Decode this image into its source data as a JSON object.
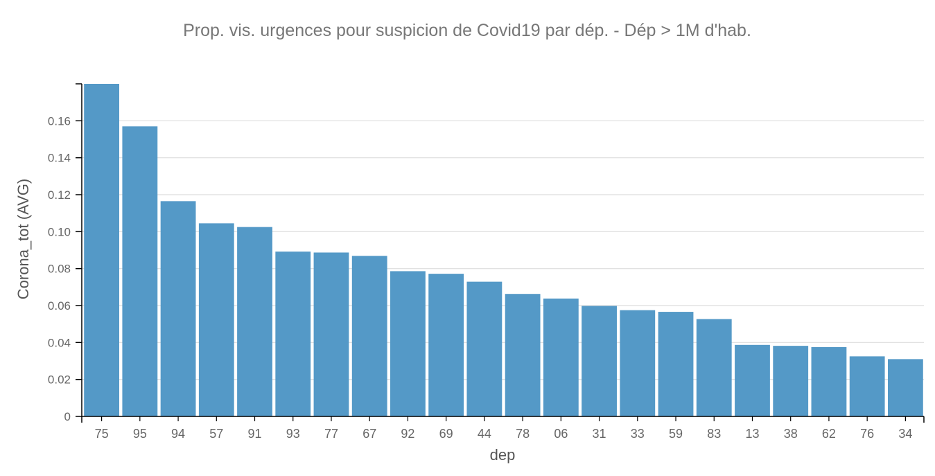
{
  "chart_data": {
    "type": "bar",
    "title": "Prop. vis. urgences pour suspicion de Covid19 par dép. - Dép > 1M d'hab.",
    "xlabel": "dep",
    "ylabel": "Corona_tot (AVG)",
    "categories": [
      "75",
      "95",
      "94",
      "57",
      "91",
      "93",
      "77",
      "67",
      "92",
      "69",
      "44",
      "78",
      "06",
      "31",
      "33",
      "59",
      "83",
      "13",
      "38",
      "62",
      "76",
      "34"
    ],
    "values": [
      0.18,
      0.157,
      0.1165,
      0.1045,
      0.1025,
      0.0892,
      0.0887,
      0.0869,
      0.0786,
      0.0772,
      0.0729,
      0.0663,
      0.0638,
      0.0598,
      0.0575,
      0.0566,
      0.0527,
      0.0387,
      0.0382,
      0.0375,
      0.0325,
      0.031
    ],
    "yticks": [
      0,
      0.02,
      0.04,
      0.06,
      0.08,
      0.1,
      0.12,
      0.14,
      0.16
    ],
    "ytick_labels": [
      "0",
      "0.02",
      "0.04",
      "0.06",
      "0.08",
      "0.10",
      "0.12",
      "0.14",
      "0.16"
    ],
    "ylim": [
      0,
      0.18
    ],
    "grid": true,
    "colors": {
      "bar": "#5499c7",
      "grid": "#dddddd",
      "axis": "#000000",
      "text": "#666666"
    }
  }
}
